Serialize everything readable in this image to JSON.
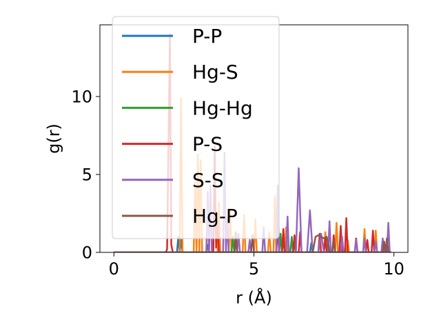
{
  "chart_data": {
    "type": "line",
    "title": "",
    "xlabel": "r (Å)",
    "ylabel": "g(r)",
    "xlim": [
      -0.5,
      10.5
    ],
    "ylim": [
      0,
      14.6
    ],
    "xticks": [
      0,
      5,
      10
    ],
    "xtick_labels": [
      "0",
      "5",
      "10"
    ],
    "yticks": [
      0,
      5,
      10
    ],
    "ytick_labels": [
      "0",
      "5",
      "10"
    ],
    "grid": false,
    "legend_position": "upper-left",
    "series": [
      {
        "name": "P-P",
        "color": "#1f77b4",
        "x": [
          0,
          2.25,
          2.3,
          2.35,
          2.4,
          2.45,
          2.5,
          3.3,
          3.35,
          3.4,
          6.4,
          6.45,
          6.5,
          7.0,
          7.05,
          7.1,
          9.9
        ],
        "y": [
          0,
          0,
          1.0,
          0,
          0.8,
          0,
          0,
          0,
          0.5,
          0,
          0,
          0.6,
          0,
          0,
          0.6,
          0,
          0
        ]
      },
      {
        "name": "Hg-S",
        "color": "#ff7f0e",
        "x": [
          0,
          2.35,
          2.4,
          2.45,
          2.5,
          2.85,
          2.9,
          2.95,
          3.0,
          3.05,
          3.1,
          3.15,
          3.3,
          3.35,
          3.4,
          3.7,
          3.75,
          3.8,
          4.1,
          4.15,
          4.2,
          4.6,
          4.65,
          4.7,
          5.0,
          5.05,
          5.1,
          5.5,
          5.55,
          5.6,
          5.7,
          5.75,
          5.8,
          5.85,
          6.1,
          6.15,
          6.2,
          7.5,
          7.55,
          7.6,
          7.9,
          7.95,
          8.0,
          8.3,
          8.35,
          8.4,
          8.9,
          8.95,
          9.0,
          9.3,
          9.35,
          9.4,
          9.9
        ],
        "y": [
          0,
          0,
          9.9,
          0,
          0,
          0,
          4.5,
          0,
          6.3,
          0,
          5.9,
          0,
          0,
          3.0,
          0,
          0,
          3.2,
          0,
          0,
          2.8,
          0,
          0,
          2.4,
          0,
          0,
          2.1,
          0,
          0,
          1.3,
          0,
          0,
          3.6,
          0,
          0,
          0,
          1.6,
          0,
          0,
          1.3,
          0,
          0,
          1.9,
          0,
          0,
          0.8,
          0,
          0,
          1.5,
          0,
          0,
          1.4,
          0,
          0
        ]
      },
      {
        "name": "Hg-Hg",
        "color": "#2ca02c",
        "x": [
          0,
          4.2,
          4.25,
          4.3,
          4.35,
          4.4,
          5.9,
          5.95,
          6.0,
          6.05,
          6.1,
          6.3,
          6.35,
          6.4,
          6.45,
          6.5,
          7.6,
          7.65,
          7.7,
          9.9
        ],
        "y": [
          0,
          0,
          1.0,
          0,
          0.7,
          0,
          0,
          1.2,
          0,
          0.8,
          0,
          0,
          1.0,
          0,
          0.6,
          0,
          0,
          0.7,
          0,
          0
        ]
      },
      {
        "name": "P-S",
        "color": "#d62728",
        "x": [
          0,
          1.85,
          1.9,
          2.0,
          2.05,
          2.1,
          3.55,
          3.6,
          3.65,
          3.7,
          3.75,
          5.8,
          5.85,
          5.9,
          6.0,
          6.05,
          6.1,
          6.4,
          6.45,
          6.5,
          6.6,
          6.65,
          6.7,
          7.3,
          7.35,
          7.4,
          7.5,
          7.55,
          7.6,
          7.8,
          7.85,
          7.9,
          8.05,
          8.1,
          8.15,
          8.25,
          8.3,
          8.35,
          8.6,
          8.65,
          8.7,
          9.0,
          9.05,
          9.1,
          9.2,
          9.25,
          9.3,
          9.9
        ],
        "y": [
          0,
          0,
          0.2,
          14.0,
          0.5,
          0,
          0,
          6.8,
          0.3,
          2.0,
          0,
          0,
          1.6,
          0,
          0,
          1.5,
          0,
          0,
          1.1,
          0,
          0,
          1.3,
          0,
          0,
          1.2,
          0,
          0,
          0.9,
          0,
          0,
          1.1,
          0,
          0,
          1.7,
          0,
          0,
          2.2,
          0,
          0,
          0.9,
          0,
          0,
          0.8,
          0,
          0,
          1.4,
          0,
          0
        ]
      },
      {
        "name": "S-S",
        "color": "#9467bd",
        "x": [
          0,
          3.3,
          3.35,
          3.4,
          3.45,
          3.5,
          3.9,
          3.95,
          4.0,
          4.05,
          4.1,
          4.4,
          4.45,
          4.5,
          4.8,
          4.85,
          4.9,
          5.3,
          5.35,
          5.4,
          5.8,
          5.85,
          5.9,
          6.15,
          6.2,
          6.25,
          6.5,
          6.6,
          6.7,
          6.9,
          7.0,
          7.1,
          7.3,
          7.4,
          7.5,
          7.65,
          7.7,
          7.75,
          8.1,
          8.15,
          8.2,
          8.6,
          8.65,
          8.7,
          8.9,
          8.95,
          9.0,
          9.3,
          9.35,
          9.4,
          9.55,
          9.6,
          9.65,
          9.75,
          9.8,
          9.85,
          9.9
        ],
        "y": [
          0,
          0,
          3.9,
          0,
          4.3,
          0,
          0,
          6.4,
          0,
          2.2,
          0,
          0,
          1.2,
          0,
          0,
          0.8,
          0,
          0,
          1.6,
          0,
          0,
          4.3,
          0,
          0,
          2.3,
          0,
          0,
          5.4,
          0,
          0,
          2.7,
          0,
          0,
          1.2,
          0,
          0,
          2.0,
          0,
          0,
          1.0,
          0,
          0,
          0.8,
          0,
          0,
          0.9,
          0,
          0,
          0.7,
          0,
          0,
          0.9,
          0,
          0,
          1.9,
          0,
          0
        ]
      },
      {
        "name": "Hg-P",
        "color": "#8c564b",
        "x": [
          0,
          4.3,
          4.35,
          4.4,
          4.9,
          4.95,
          5.0,
          7.1,
          7.2,
          7.3,
          7.4,
          7.5,
          7.6,
          7.7,
          7.8,
          7.85,
          7.9,
          9.6,
          9.65,
          9.7,
          9.75,
          9.8,
          9.9
        ],
        "y": [
          0,
          0,
          1.3,
          0,
          0,
          1.1,
          0,
          0,
          1.0,
          1.1,
          1.0,
          0.9,
          1.0,
          0,
          0,
          0.8,
          0,
          0,
          0.7,
          0,
          0.9,
          0,
          0
        ]
      }
    ]
  }
}
